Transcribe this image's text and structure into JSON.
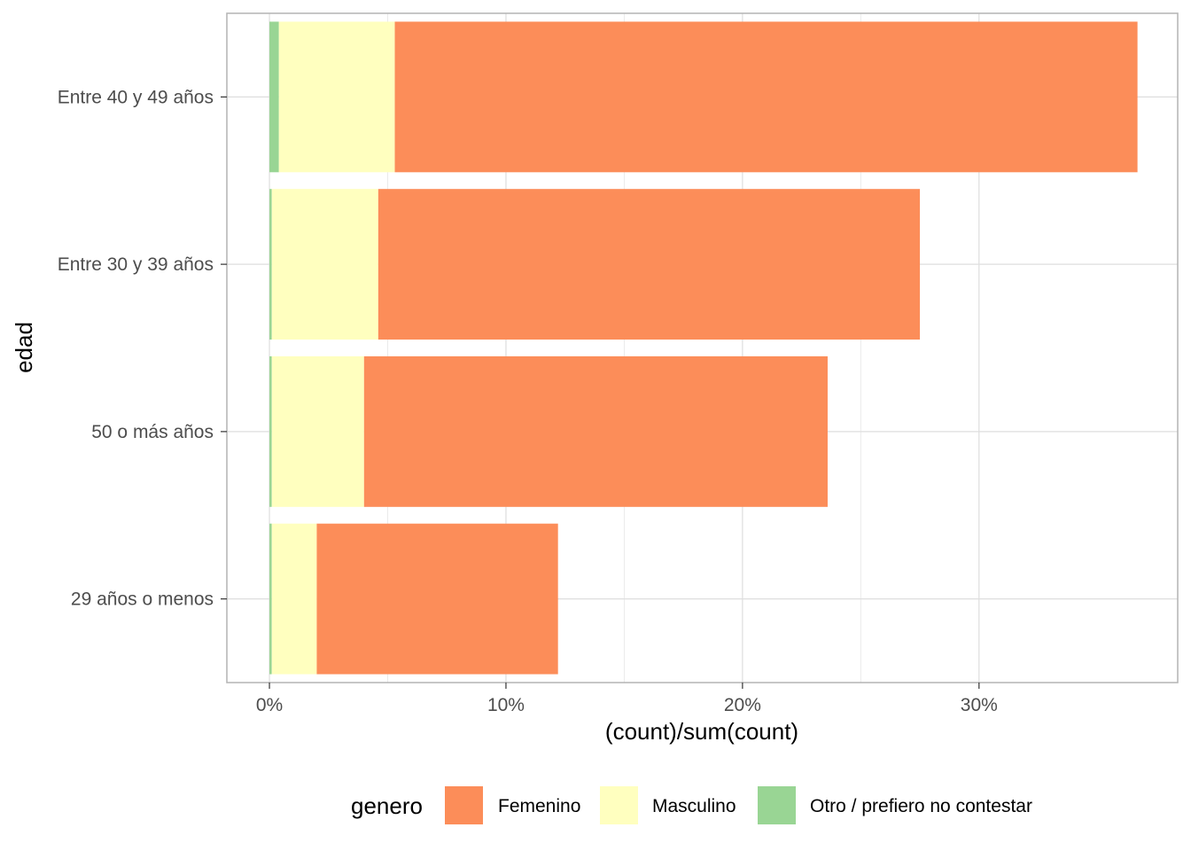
{
  "chart_data": {
    "type": "bar",
    "orientation": "horizontal",
    "stacked": true,
    "categories": [
      "Entre 40 y 49 años",
      "Entre 30 y 39 años",
      "50 o más años",
      "29 años o menos"
    ],
    "series": [
      {
        "name": "Otro / prefiero no contestar",
        "color": "#99d594",
        "values": [
          0.4,
          0.1,
          0.1,
          0.1
        ]
      },
      {
        "name": "Masculino",
        "color": "#ffffbf",
        "values": [
          4.9,
          4.5,
          3.9,
          1.9
        ]
      },
      {
        "name": "Femenino",
        "color": "#fc8d59",
        "values": [
          31.4,
          22.9,
          19.6,
          10.2
        ]
      }
    ],
    "xlabel": "(count)/sum(count)",
    "ylabel": "edad",
    "xlim": [
      -1.8,
      38.4
    ],
    "xticks": [
      0,
      10,
      20,
      30
    ],
    "xtick_labels": [
      "0%",
      "10%",
      "20%",
      "30%"
    ],
    "grid": true,
    "legend": {
      "title": "genero",
      "position": "bottom",
      "entries": [
        "Femenino",
        "Masculino",
        "Otro / prefiero no contestar"
      ]
    }
  }
}
